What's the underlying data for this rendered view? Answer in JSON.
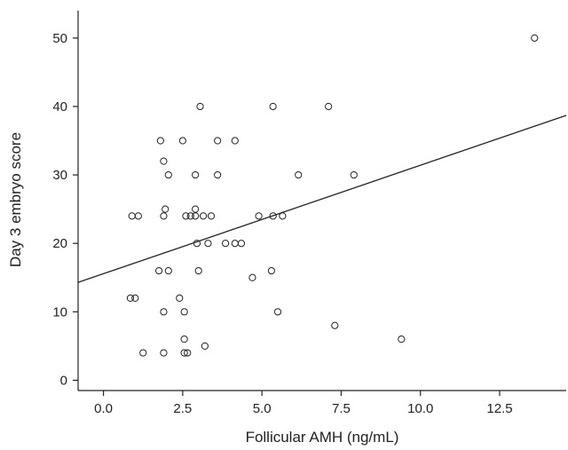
{
  "chart_data": {
    "type": "scatter",
    "title": "",
    "xlabel": "Follicular AMH (ng/mL)",
    "ylabel": "Day 3 embryo score",
    "xlim": [
      -0.8,
      14.6
    ],
    "ylim": [
      -1.5,
      54
    ],
    "xticks": [
      0.0,
      2.5,
      5.0,
      7.5,
      10.0,
      12.5
    ],
    "xtick_labels": [
      "0.0",
      "2.5",
      "5.0",
      "7.5",
      "10.0",
      "12.5"
    ],
    "yticks": [
      0,
      10,
      20,
      30,
      40,
      50
    ],
    "ytick_labels": [
      "0",
      "10",
      "20",
      "30",
      "40",
      "50"
    ],
    "grid": false,
    "marker": "open-circle",
    "points": [
      {
        "x": 13.6,
        "y": 50
      },
      {
        "x": 3.05,
        "y": 40
      },
      {
        "x": 5.35,
        "y": 40
      },
      {
        "x": 7.1,
        "y": 40
      },
      {
        "x": 1.8,
        "y": 35
      },
      {
        "x": 2.5,
        "y": 35
      },
      {
        "x": 3.6,
        "y": 35
      },
      {
        "x": 4.15,
        "y": 35
      },
      {
        "x": 1.9,
        "y": 32
      },
      {
        "x": 2.05,
        "y": 30
      },
      {
        "x": 2.9,
        "y": 30
      },
      {
        "x": 3.6,
        "y": 30
      },
      {
        "x": 6.15,
        "y": 30
      },
      {
        "x": 7.9,
        "y": 30
      },
      {
        "x": 1.95,
        "y": 25
      },
      {
        "x": 2.9,
        "y": 25
      },
      {
        "x": 0.9,
        "y": 24
      },
      {
        "x": 1.1,
        "y": 24
      },
      {
        "x": 1.9,
        "y": 24
      },
      {
        "x": 2.6,
        "y": 24
      },
      {
        "x": 2.75,
        "y": 24
      },
      {
        "x": 2.9,
        "y": 24
      },
      {
        "x": 3.15,
        "y": 24
      },
      {
        "x": 3.4,
        "y": 24
      },
      {
        "x": 4.9,
        "y": 24
      },
      {
        "x": 5.35,
        "y": 24
      },
      {
        "x": 5.65,
        "y": 24
      },
      {
        "x": 2.95,
        "y": 20
      },
      {
        "x": 3.3,
        "y": 20
      },
      {
        "x": 3.85,
        "y": 20
      },
      {
        "x": 4.15,
        "y": 20
      },
      {
        "x": 4.35,
        "y": 20
      },
      {
        "x": 1.75,
        "y": 16
      },
      {
        "x": 2.05,
        "y": 16
      },
      {
        "x": 3.0,
        "y": 16
      },
      {
        "x": 5.3,
        "y": 16
      },
      {
        "x": 4.7,
        "y": 15
      },
      {
        "x": 0.85,
        "y": 12
      },
      {
        "x": 1.0,
        "y": 12
      },
      {
        "x": 2.4,
        "y": 12
      },
      {
        "x": 1.9,
        "y": 10
      },
      {
        "x": 2.55,
        "y": 10
      },
      {
        "x": 5.5,
        "y": 10
      },
      {
        "x": 7.3,
        "y": 8
      },
      {
        "x": 2.55,
        "y": 6
      },
      {
        "x": 9.4,
        "y": 6
      },
      {
        "x": 3.2,
        "y": 5
      },
      {
        "x": 1.25,
        "y": 4
      },
      {
        "x": 1.9,
        "y": 4
      },
      {
        "x": 2.55,
        "y": 4
      },
      {
        "x": 2.65,
        "y": 4
      }
    ],
    "regression_line": {
      "x": [
        -0.8,
        14.6
      ],
      "y": [
        14.3,
        38.7
      ]
    }
  }
}
